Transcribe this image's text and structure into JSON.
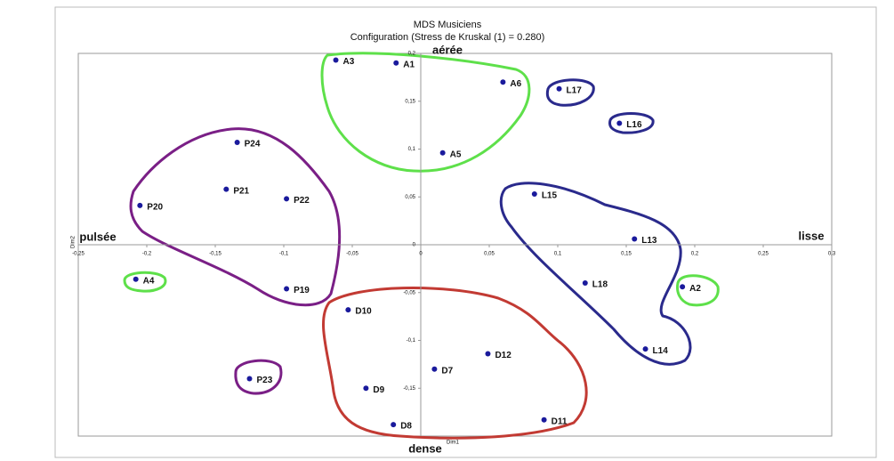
{
  "chart_data": {
    "type": "scatter",
    "title": "MDS Musiciens",
    "subtitle": "Configuration (Stress de Kruskal (1) = 0.280)",
    "x_label": "Dim1",
    "y_label": "Dim2",
    "annotations": [
      "aérée",
      "dense",
      "pulsée",
      "lisse"
    ],
    "color": "#1a1a9c",
    "point_labels": [
      "A3",
      "A1",
      "A6",
      "L17",
      "L16",
      "A5",
      "P24",
      "P21",
      "P22",
      "P20",
      "L15",
      "L13",
      "A4",
      "P19",
      "L18",
      "A2",
      "D10",
      "L14",
      "D12",
      "D7",
      "P23",
      "D9",
      "D11",
      "D8"
    ],
    "x": [
      -0.062,
      -0.018,
      0.06,
      0.101,
      0.145,
      0.016,
      -0.134,
      -0.142,
      -0.098,
      -0.205,
      0.083,
      0.156,
      -0.208,
      -0.098,
      0.12,
      0.191,
      -0.053,
      0.164,
      0.049,
      0.01,
      -0.125,
      -0.04,
      0.09,
      -0.02
    ],
    "values": [
      0.193,
      0.19,
      0.17,
      0.163,
      0.127,
      0.096,
      0.107,
      0.058,
      0.048,
      0.041,
      0.053,
      0.006,
      -0.036,
      -0.046,
      -0.04,
      -0.044,
      -0.068,
      -0.109,
      -0.114,
      -0.13,
      -0.14,
      -0.15,
      -0.183,
      -0.188
    ],
    "xlim": [
      -0.25,
      0.3
    ],
    "ylim": [
      -0.2,
      0.2
    ],
    "xticks": [
      {
        "value": -0.25,
        "label": "-0,25"
      },
      {
        "value": -0.2,
        "label": "-0,2"
      },
      {
        "value": -0.15,
        "label": "-0,15"
      },
      {
        "value": -0.1,
        "label": "-0,1"
      },
      {
        "value": -0.05,
        "label": "-0,05"
      },
      0,
      {
        "value": 0.05,
        "label": "0,05"
      },
      {
        "value": 0.1,
        "label": "0,1"
      },
      {
        "value": 0.15,
        "label": "0,15"
      },
      {
        "value": 0.2,
        "label": "0,2"
      },
      {
        "value": 0.25,
        "label": "0,25"
      },
      {
        "value": 0.3,
        "label": "0,3"
      }
    ],
    "yticks": [
      {
        "value": -0.15,
        "label": "-0,15"
      },
      {
        "value": -0.1,
        "label": "-0,1"
      },
      {
        "value": -0.05,
        "label": "-0,05"
      },
      0,
      {
        "value": 0.05,
        "label": "0,05"
      },
      {
        "value": 0.1,
        "label": "0,1"
      },
      {
        "value": 0.15,
        "label": "0,15"
      },
      {
        "value": 0.2,
        "label": "0,2"
      }
    ]
  }
}
